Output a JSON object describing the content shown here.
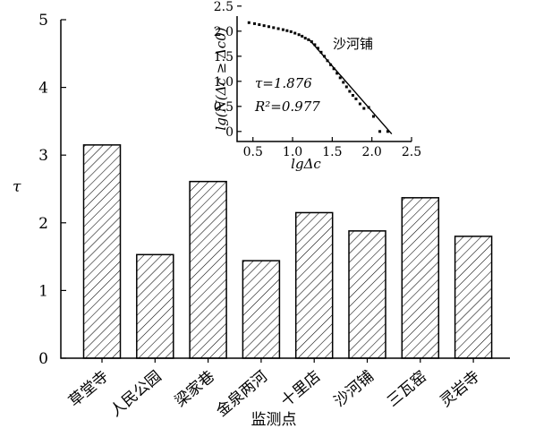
{
  "chart_data": [
    {
      "type": "bar",
      "categories": [
        "草堂寺",
        "人民公园",
        "梁家巷",
        "金泉两河",
        "十里店",
        "沙河铺",
        "三瓦窑",
        "灵岩寺"
      ],
      "values": [
        3.15,
        1.53,
        2.61,
        1.44,
        2.15,
        1.88,
        2.37,
        1.8
      ],
      "xlabel": "监测点",
      "ylabel": "τ",
      "ylim": [
        0,
        5
      ],
      "yticks": [
        "0",
        "1",
        "2",
        "3",
        "4",
        "5"
      ],
      "grid": false
    },
    {
      "type": "scatter",
      "title": "沙河铺",
      "xlabel": "lgΔc",
      "ylabel": "lg(N(Δc ≥ Δc0)",
      "xlim": [
        0.3,
        2.5
      ],
      "ylim": [
        -0.2,
        2.3
      ],
      "xticks": [
        "0.5",
        "1.0",
        "1.5",
        "2.0",
        "2.5"
      ],
      "yticks": [
        "0",
        "0.5",
        "1.0",
        "1.5",
        "2.0",
        "2.5"
      ],
      "annotations": [
        "τ=1.876",
        "R²=0.977"
      ],
      "x": [
        0.45,
        0.52,
        0.58,
        0.64,
        0.7,
        0.76,
        0.82,
        0.88,
        0.93,
        0.98,
        1.03,
        1.08,
        1.12,
        1.16,
        1.2,
        1.24,
        1.28,
        1.32,
        1.36,
        1.4,
        1.44,
        1.48,
        1.52,
        1.56,
        1.6,
        1.64,
        1.68,
        1.72,
        1.76,
        1.8,
        1.85,
        1.9,
        1.96,
        2.02,
        2.1,
        2.2
      ],
      "y": [
        2.17,
        2.15,
        2.13,
        2.11,
        2.09,
        2.07,
        2.05,
        2.03,
        2.01,
        1.99,
        1.96,
        1.93,
        1.9,
        1.86,
        1.83,
        1.79,
        1.73,
        1.66,
        1.58,
        1.5,
        1.41,
        1.33,
        1.25,
        1.16,
        1.07,
        0.98,
        0.89,
        0.8,
        0.72,
        0.65,
        0.55,
        0.46,
        0.48,
        0.3,
        0.0,
        0.0
      ],
      "fit_line": [
        [
          1.2,
          1.85
        ],
        [
          2.25,
          -0.05
        ]
      ]
    }
  ]
}
